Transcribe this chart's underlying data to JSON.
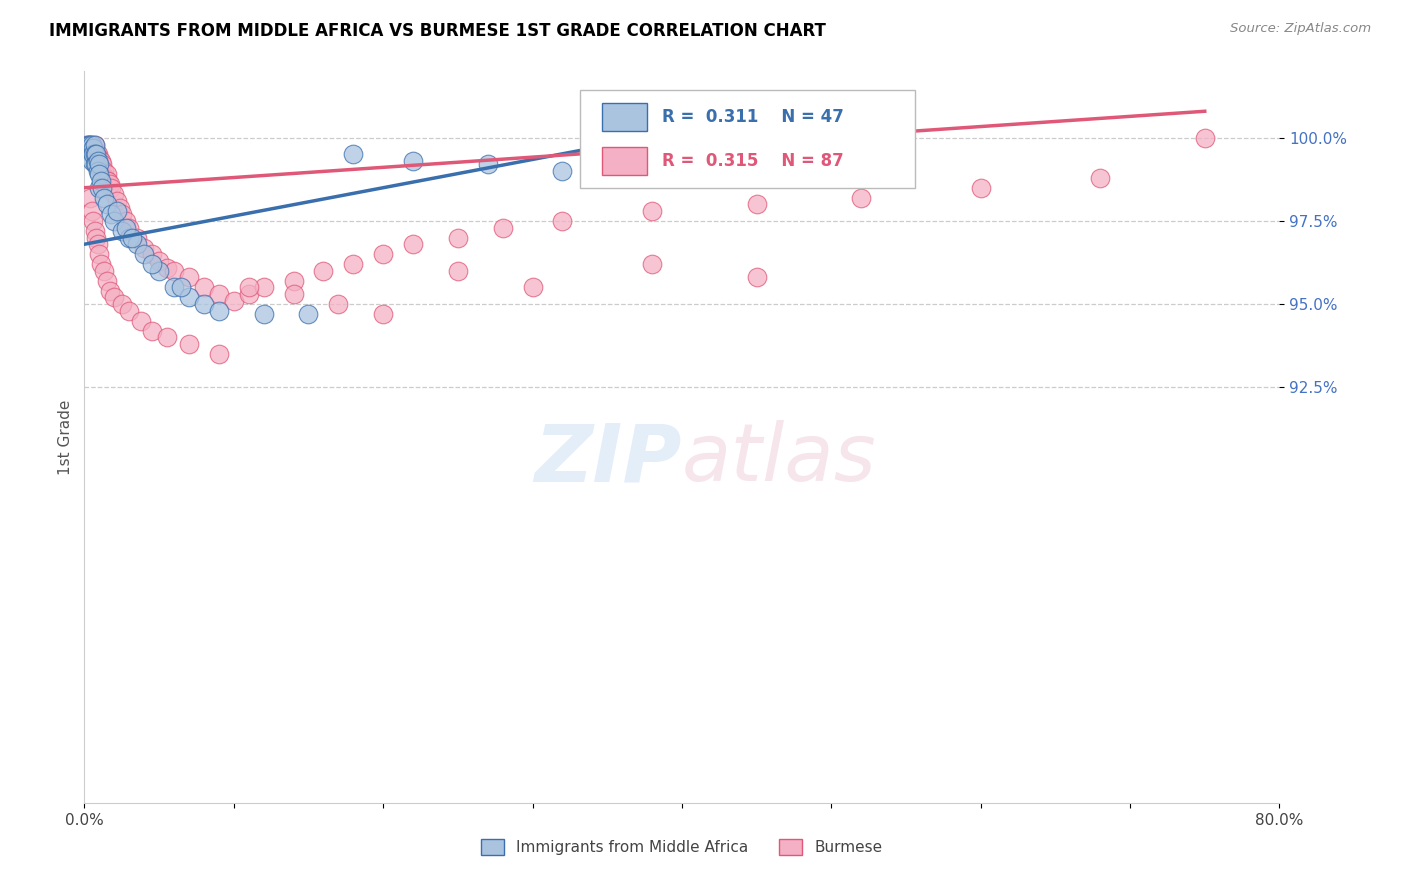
{
  "title": "IMMIGRANTS FROM MIDDLE AFRICA VS BURMESE 1ST GRADE CORRELATION CHART",
  "source": "Source: ZipAtlas.com",
  "ylabel": "1st Grade",
  "blue_R": 0.311,
  "blue_N": 47,
  "pink_R": 0.315,
  "pink_N": 87,
  "blue_color": "#aac4e0",
  "blue_line_color": "#3a6fad",
  "pink_color": "#f4b0c4",
  "pink_line_color": "#e05878",
  "legend_label_blue": "Immigrants from Middle Africa",
  "legend_label_pink": "Burmese",
  "xlim": [
    0.0,
    80.0
  ],
  "ylim": [
    80.0,
    102.0
  ],
  "ytick_positions": [
    92.5,
    95.0,
    97.5,
    100.0
  ],
  "ytick_labels": [
    "92.5%",
    "95.0%",
    "97.5%",
    "100.0%"
  ],
  "blue_trend_x": [
    0.0,
    40.0
  ],
  "blue_trend_y": [
    96.8,
    100.2
  ],
  "pink_trend_x": [
    0.0,
    75.0
  ],
  "pink_trend_y": [
    98.5,
    100.8
  ],
  "blue_x": [
    0.2,
    0.3,
    0.3,
    0.4,
    0.4,
    0.5,
    0.5,
    0.5,
    0.6,
    0.6,
    0.7,
    0.7,
    0.7,
    0.8,
    0.8,
    0.9,
    0.9,
    1.0,
    1.0,
    1.0,
    1.1,
    1.2,
    1.3,
    1.5,
    1.8,
    2.0,
    2.5,
    3.0,
    3.5,
    4.0,
    5.0,
    6.0,
    7.0,
    8.0,
    9.0,
    12.0,
    15.0,
    18.0,
    22.0,
    27.0,
    32.0,
    38.0,
    2.2,
    2.8,
    3.2,
    4.5,
    6.5
  ],
  "blue_y": [
    99.8,
    99.8,
    99.7,
    99.8,
    99.6,
    99.8,
    99.5,
    99.3,
    99.7,
    99.5,
    99.8,
    99.5,
    99.2,
    99.5,
    99.2,
    99.3,
    99.0,
    99.2,
    98.9,
    98.5,
    98.7,
    98.5,
    98.2,
    98.0,
    97.7,
    97.5,
    97.2,
    97.0,
    96.8,
    96.5,
    96.0,
    95.5,
    95.2,
    95.0,
    94.8,
    94.7,
    94.7,
    99.5,
    99.3,
    99.2,
    99.0,
    98.8,
    97.8,
    97.3,
    97.0,
    96.2,
    95.5
  ],
  "pink_x": [
    0.2,
    0.3,
    0.3,
    0.4,
    0.4,
    0.5,
    0.5,
    0.6,
    0.6,
    0.7,
    0.7,
    0.8,
    0.8,
    0.9,
    0.9,
    1.0,
    1.0,
    1.1,
    1.1,
    1.2,
    1.2,
    1.3,
    1.4,
    1.5,
    1.5,
    1.6,
    1.7,
    1.8,
    2.0,
    2.2,
    2.4,
    2.5,
    2.8,
    3.0,
    3.5,
    4.0,
    4.5,
    5.0,
    5.5,
    6.0,
    7.0,
    8.0,
    9.0,
    10.0,
    11.0,
    12.0,
    14.0,
    16.0,
    18.0,
    20.0,
    22.0,
    25.0,
    28.0,
    32.0,
    38.0,
    45.0,
    52.0,
    60.0,
    68.0,
    75.0,
    0.4,
    0.5,
    0.6,
    0.7,
    0.8,
    0.9,
    1.0,
    1.1,
    1.3,
    1.5,
    1.7,
    2.0,
    2.5,
    3.0,
    3.8,
    4.5,
    5.5,
    7.0,
    9.0,
    11.0,
    14.0,
    17.0,
    20.0,
    25.0,
    30.0,
    38.0,
    45.0
  ],
  "pink_y": [
    99.8,
    99.8,
    99.7,
    99.8,
    99.7,
    99.8,
    99.6,
    99.7,
    99.5,
    99.8,
    99.5,
    99.6,
    99.3,
    99.5,
    99.3,
    99.4,
    99.1,
    99.3,
    99.0,
    99.2,
    98.9,
    99.0,
    98.8,
    98.9,
    98.7,
    98.7,
    98.6,
    98.5,
    98.3,
    98.1,
    97.9,
    97.7,
    97.5,
    97.3,
    97.0,
    96.7,
    96.5,
    96.3,
    96.1,
    96.0,
    95.8,
    95.5,
    95.3,
    95.1,
    95.3,
    95.5,
    95.7,
    96.0,
    96.2,
    96.5,
    96.8,
    97.0,
    97.3,
    97.5,
    97.8,
    98.0,
    98.2,
    98.5,
    98.8,
    100.0,
    98.2,
    97.8,
    97.5,
    97.2,
    97.0,
    96.8,
    96.5,
    96.2,
    96.0,
    95.7,
    95.4,
    95.2,
    95.0,
    94.8,
    94.5,
    94.2,
    94.0,
    93.8,
    93.5,
    95.5,
    95.3,
    95.0,
    94.7,
    96.0,
    95.5,
    96.2,
    95.8
  ]
}
